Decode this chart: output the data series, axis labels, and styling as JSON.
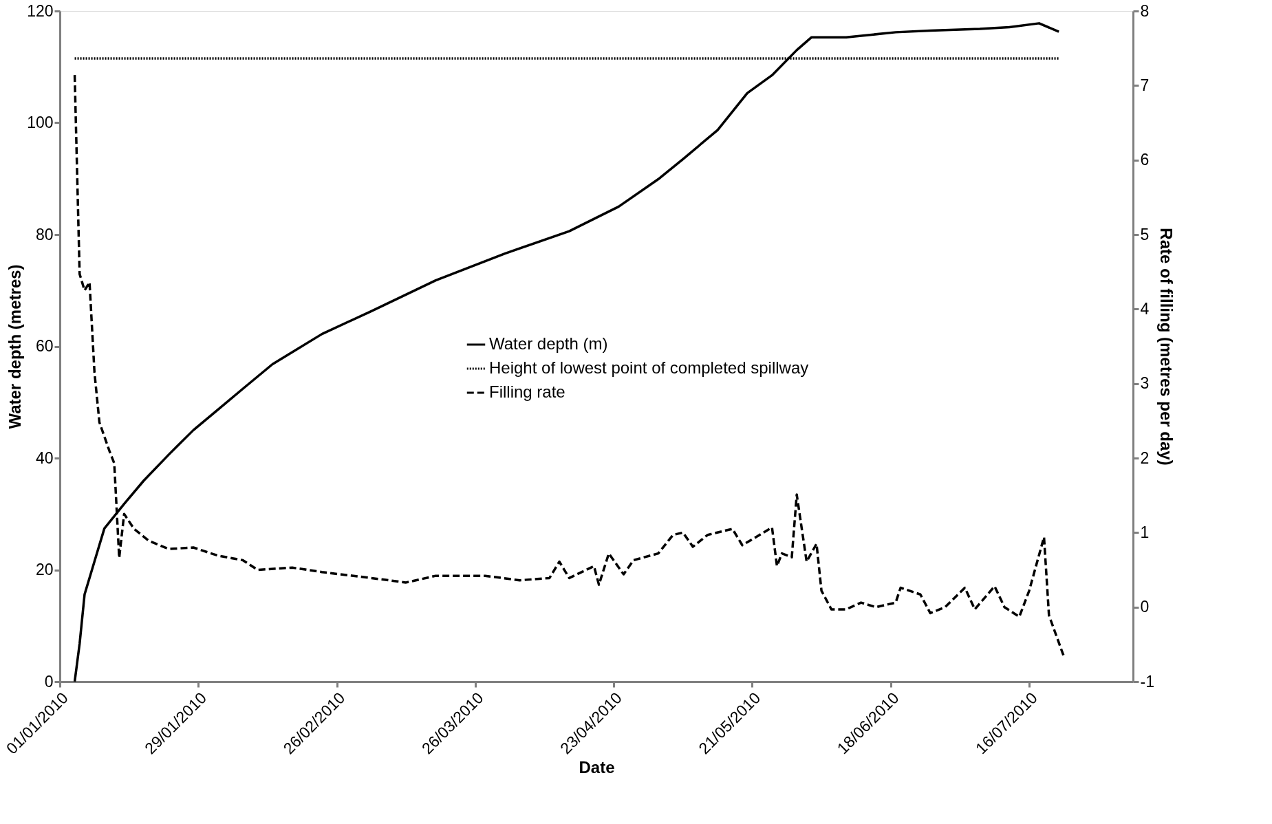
{
  "chart_data": {
    "type": "line",
    "xlabel": "Date",
    "ylabel": "Water depth (metres)",
    "y2label": "Rate of filling (metres per day)",
    "xlim": [
      "2010-01-01",
      "2010-08-06"
    ],
    "xticks": [
      {
        "value": "2010-01-01",
        "label": "01/01/2010"
      },
      {
        "value": "2010-01-29",
        "label": "29/01/2010"
      },
      {
        "value": "2010-02-26",
        "label": "26/02/2010"
      },
      {
        "value": "2010-03-26",
        "label": "26/03/2010"
      },
      {
        "value": "2010-04-23",
        "label": "23/04/2010"
      },
      {
        "value": "2010-05-21",
        "label": "21/05/2010"
      },
      {
        "value": "2010-06-18",
        "label": "18/06/2010"
      },
      {
        "value": "2010-07-16",
        "label": "16/07/2010"
      }
    ],
    "ylim": [
      0,
      120
    ],
    "yticks": [
      0,
      20,
      40,
      60,
      80,
      100,
      120
    ],
    "y2lim": [
      -1,
      8
    ],
    "y2ticks": [
      -1,
      0,
      1,
      2,
      3,
      4,
      5,
      6,
      7,
      8
    ],
    "grid": false,
    "legend": "center",
    "marker": "none",
    "series": [
      {
        "name": "Water depth (m)",
        "color": "#000000",
        "line_style": "solid",
        "x": [
          "2010-01-04",
          "2010-01-05",
          "2010-01-06",
          "2010-01-08",
          "2010-01-10",
          "2010-01-14",
          "2010-01-18",
          "2010-01-23",
          "2010-01-28",
          "2010-02-02",
          "2010-02-07",
          "2010-02-13",
          "2010-02-23",
          "2010-03-05",
          "2010-03-18",
          "2010-04-01",
          "2010-04-14",
          "2010-04-24",
          "2010-05-02",
          "2010-05-07",
          "2010-05-14",
          "2010-05-20",
          "2010-05-25",
          "2010-05-30",
          "2010-06-02",
          "2010-06-09",
          "2010-06-19",
          "2010-06-26",
          "2010-07-06",
          "2010-07-12",
          "2010-07-18",
          "2010-07-22"
        ],
        "values": [
          0,
          6.8,
          15.6,
          21.5,
          27.4,
          31.8,
          36,
          40.6,
          45,
          48.7,
          52.4,
          56.8,
          62.2,
          66.3,
          71.8,
          76.6,
          80.6,
          85,
          89.9,
          93.5,
          98.7,
          105.3,
          108.5,
          113,
          115.3,
          115.3,
          116.2,
          116.5,
          116.8,
          117.1,
          117.8,
          116.3
        ]
      },
      {
        "name": "Height of lowest point of completed spillway",
        "color": "#000000",
        "line_style": "dotted",
        "x": [
          "2010-01-04",
          "2010-07-22"
        ],
        "values": [
          111.5,
          111.5
        ]
      },
      {
        "name": "Filling rate",
        "color": "#000000",
        "line_style": "dashed",
        "axis": "y2",
        "x": [
          "2010-01-04",
          "2010-01-05",
          "2010-01-06",
          "2010-01-07",
          "2010-01-08",
          "2010-01-09",
          "2010-01-11",
          "2010-01-12",
          "2010-01-13",
          "2010-01-14",
          "2010-01-16",
          "2010-01-19",
          "2010-01-23",
          "2010-01-28",
          "2010-02-02",
          "2010-02-07",
          "2010-02-10",
          "2010-02-17",
          "2010-02-23",
          "2010-03-05",
          "2010-03-12",
          "2010-03-18",
          "2010-03-28",
          "2010-04-04",
          "2010-04-10",
          "2010-04-12",
          "2010-04-14",
          "2010-04-19",
          "2010-04-20",
          "2010-04-22",
          "2010-04-25",
          "2010-04-27",
          "2010-05-02",
          "2010-05-05",
          "2010-05-07",
          "2010-05-09",
          "2010-05-12",
          "2010-05-17",
          "2010-05-19",
          "2010-05-25",
          "2010-05-26",
          "2010-05-27",
          "2010-05-29",
          "2010-05-30",
          "2010-06-01",
          "2010-06-03",
          "2010-06-04",
          "2010-06-06",
          "2010-06-09",
          "2010-06-12",
          "2010-06-15",
          "2010-06-19",
          "2010-06-20",
          "2010-06-24",
          "2010-06-26",
          "2010-06-29",
          "2010-07-03",
          "2010-07-05",
          "2010-07-09",
          "2010-07-11",
          "2010-07-14",
          "2010-07-16",
          "2010-07-19",
          "2010-07-20",
          "2010-07-23"
        ],
        "values": [
          7.14,
          4.47,
          4.25,
          4.36,
          3.15,
          2.48,
          2.1,
          1.93,
          0.66,
          1.25,
          1.05,
          0.89,
          0.78,
          0.8,
          0.69,
          0.63,
          0.5,
          0.53,
          0.47,
          0.39,
          0.33,
          0.42,
          0.42,
          0.36,
          0.39,
          0.61,
          0.39,
          0.55,
          0.3,
          0.72,
          0.44,
          0.63,
          0.72,
          0.97,
          1.0,
          0.81,
          0.97,
          1.05,
          0.83,
          1.07,
          0.55,
          0.72,
          0.67,
          1.51,
          0.61,
          0.85,
          0.22,
          -0.03,
          -0.03,
          0.06,
          0.0,
          0.06,
          0.26,
          0.17,
          -0.08,
          0.0,
          0.26,
          -0.03,
          0.28,
          0.0,
          -0.13,
          0.22,
          0.94,
          -0.11,
          -0.66
        ]
      }
    ]
  }
}
